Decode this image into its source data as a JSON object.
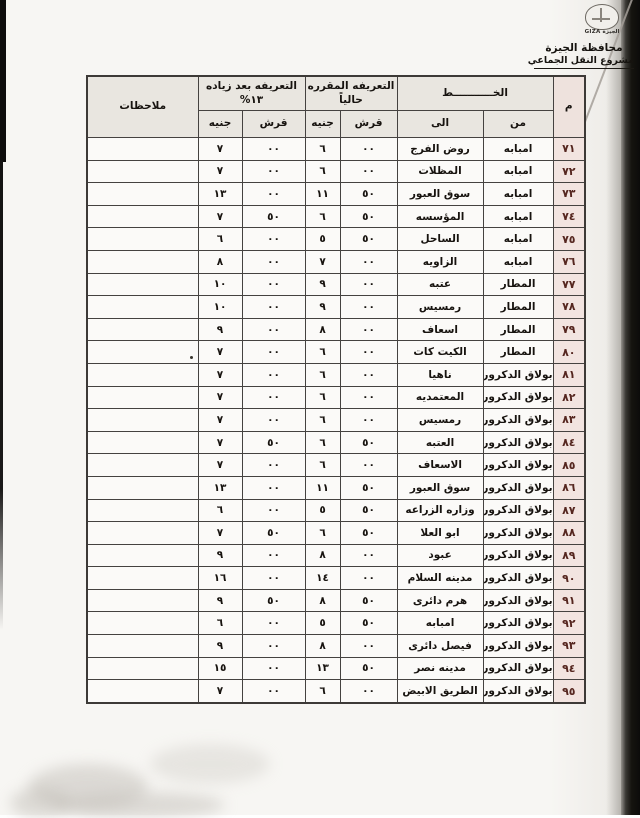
{
  "letterhead": {
    "logo_text": "الجيزة GIZA",
    "org": "محافظة الجيزة",
    "project": "مشروع النقل الجماعي"
  },
  "table": {
    "headers": {
      "num": "م",
      "line": "الخـــــــــــط",
      "from": "من",
      "to": "الى",
      "current_l1": "التعريفه المقرره",
      "current_l2": "حالياً",
      "increase_l1": "التعريفه بعد زياده",
      "increase_l2": "١٣%",
      "piasters": "قرش",
      "pounds": "جنيه",
      "notes": "ملاحظات"
    },
    "rows": [
      {
        "num": "٧١",
        "from": "امبابه",
        "to": "روض الفرج",
        "cur_pt": "٠٠",
        "cur_le": "٦",
        "new_pt": "٠٠",
        "new_le": "٧",
        "notes": ""
      },
      {
        "num": "٧٢",
        "from": "امبابه",
        "to": "المظلات",
        "cur_pt": "٠٠",
        "cur_le": "٦",
        "new_pt": "٠٠",
        "new_le": "٧",
        "notes": ""
      },
      {
        "num": "٧٣",
        "from": "امبابه",
        "to": "سوق العبور",
        "cur_pt": "٥٠",
        "cur_le": "١١",
        "new_pt": "٠٠",
        "new_le": "١٣",
        "notes": ""
      },
      {
        "num": "٧٤",
        "from": "امبابه",
        "to": "المؤسسه",
        "cur_pt": "٥٠",
        "cur_le": "٦",
        "new_pt": "٥٠",
        "new_le": "٧",
        "notes": ""
      },
      {
        "num": "٧٥",
        "from": "امبابه",
        "to": "الساحل",
        "cur_pt": "٥٠",
        "cur_le": "٥",
        "new_pt": "٠٠",
        "new_le": "٦",
        "notes": ""
      },
      {
        "num": "٧٦",
        "from": "امبابه",
        "to": "الزاويه",
        "cur_pt": "٠٠",
        "cur_le": "٧",
        "new_pt": "٠٠",
        "new_le": "٨",
        "notes": ""
      },
      {
        "num": "٧٧",
        "from": "المطار",
        "to": "عتبه",
        "cur_pt": "٠٠",
        "cur_le": "٩",
        "new_pt": "٠٠",
        "new_le": "١٠",
        "notes": ""
      },
      {
        "num": "٧٨",
        "from": "المطار",
        "to": "رمسيس",
        "cur_pt": "٠٠",
        "cur_le": "٩",
        "new_pt": "٠٠",
        "new_le": "١٠",
        "notes": ""
      },
      {
        "num": "٧٩",
        "from": "المطار",
        "to": "اسعاف",
        "cur_pt": "٠٠",
        "cur_le": "٨",
        "new_pt": "٠٠",
        "new_le": "٩",
        "notes": ""
      },
      {
        "num": "٨٠",
        "from": "المطار",
        "to": "الكيت كات",
        "cur_pt": "٠٠",
        "cur_le": "٦",
        "new_pt": "٠٠",
        "new_le": "٧",
        "notes": ""
      },
      {
        "num": "٨١",
        "from": "بولاق الدكرور",
        "to": "ناهيا",
        "cur_pt": "٠٠",
        "cur_le": "٦",
        "new_pt": "٠٠",
        "new_le": "٧",
        "notes": ""
      },
      {
        "num": "٨٢",
        "from": "بولاق الدكرور",
        "to": "المعتمديه",
        "cur_pt": "٠٠",
        "cur_le": "٦",
        "new_pt": "٠٠",
        "new_le": "٧",
        "notes": ""
      },
      {
        "num": "٨٣",
        "from": "بولاق الدكرور",
        "to": "رمسيس",
        "cur_pt": "٠٠",
        "cur_le": "٦",
        "new_pt": "٠٠",
        "new_le": "٧",
        "notes": ""
      },
      {
        "num": "٨٤",
        "from": "بولاق الدكرور",
        "to": "العتبه",
        "cur_pt": "٥٠",
        "cur_le": "٦",
        "new_pt": "٥٠",
        "new_le": "٧",
        "notes": ""
      },
      {
        "num": "٨٥",
        "from": "بولاق الدكرور",
        "to": "الاسعاف",
        "cur_pt": "٠٠",
        "cur_le": "٦",
        "new_pt": "٠٠",
        "new_le": "٧",
        "notes": ""
      },
      {
        "num": "٨٦",
        "from": "بولاق الدكرور",
        "to": "سوق العبور",
        "cur_pt": "٥٠",
        "cur_le": "١١",
        "new_pt": "٠٠",
        "new_le": "١٣",
        "notes": ""
      },
      {
        "num": "٨٧",
        "from": "بولاق الدكرور",
        "to": "وزاره الزراعه",
        "cur_pt": "٥٠",
        "cur_le": "٥",
        "new_pt": "٠٠",
        "new_le": "٦",
        "notes": ""
      },
      {
        "num": "٨٨",
        "from": "بولاق الدكرور",
        "to": "ابو العلا",
        "cur_pt": "٥٠",
        "cur_le": "٦",
        "new_pt": "٥٠",
        "new_le": "٧",
        "notes": ""
      },
      {
        "num": "٨٩",
        "from": "بولاق الدكرور",
        "to": "عبود",
        "cur_pt": "٠٠",
        "cur_le": "٨",
        "new_pt": "٠٠",
        "new_le": "٩",
        "notes": ""
      },
      {
        "num": "٩٠",
        "from": "بولاق الدكرور",
        "to": "مدينه السلام",
        "cur_pt": "٠٠",
        "cur_le": "١٤",
        "new_pt": "٠٠",
        "new_le": "١٦",
        "notes": ""
      },
      {
        "num": "٩١",
        "from": "بولاق الدكرور",
        "to": "هرم دائرى",
        "cur_pt": "٥٠",
        "cur_le": "٨",
        "new_pt": "٥٠",
        "new_le": "٩",
        "notes": ""
      },
      {
        "num": "٩٢",
        "from": "بولاق الدكرور",
        "to": "امبابه",
        "cur_pt": "٥٠",
        "cur_le": "٥",
        "new_pt": "٠٠",
        "new_le": "٦",
        "notes": ""
      },
      {
        "num": "٩٣",
        "from": "بولاق الدكرور",
        "to": "فيصل دائرى",
        "cur_pt": "٠٠",
        "cur_le": "٨",
        "new_pt": "٠٠",
        "new_le": "٩",
        "notes": ""
      },
      {
        "num": "٩٤",
        "from": "بولاق الدكرور",
        "to": "مدينه نصر",
        "cur_pt": "٥٠",
        "cur_le": "١٣",
        "new_pt": "٠٠",
        "new_le": "١٥",
        "notes": ""
      },
      {
        "num": "٩٥",
        "from": "بولاق الدكرور",
        "to": "الطريق الابيض",
        "cur_pt": "٠٠",
        "cur_le": "٦",
        "new_pt": "٠٠",
        "new_le": "٧",
        "notes": ""
      }
    ]
  }
}
